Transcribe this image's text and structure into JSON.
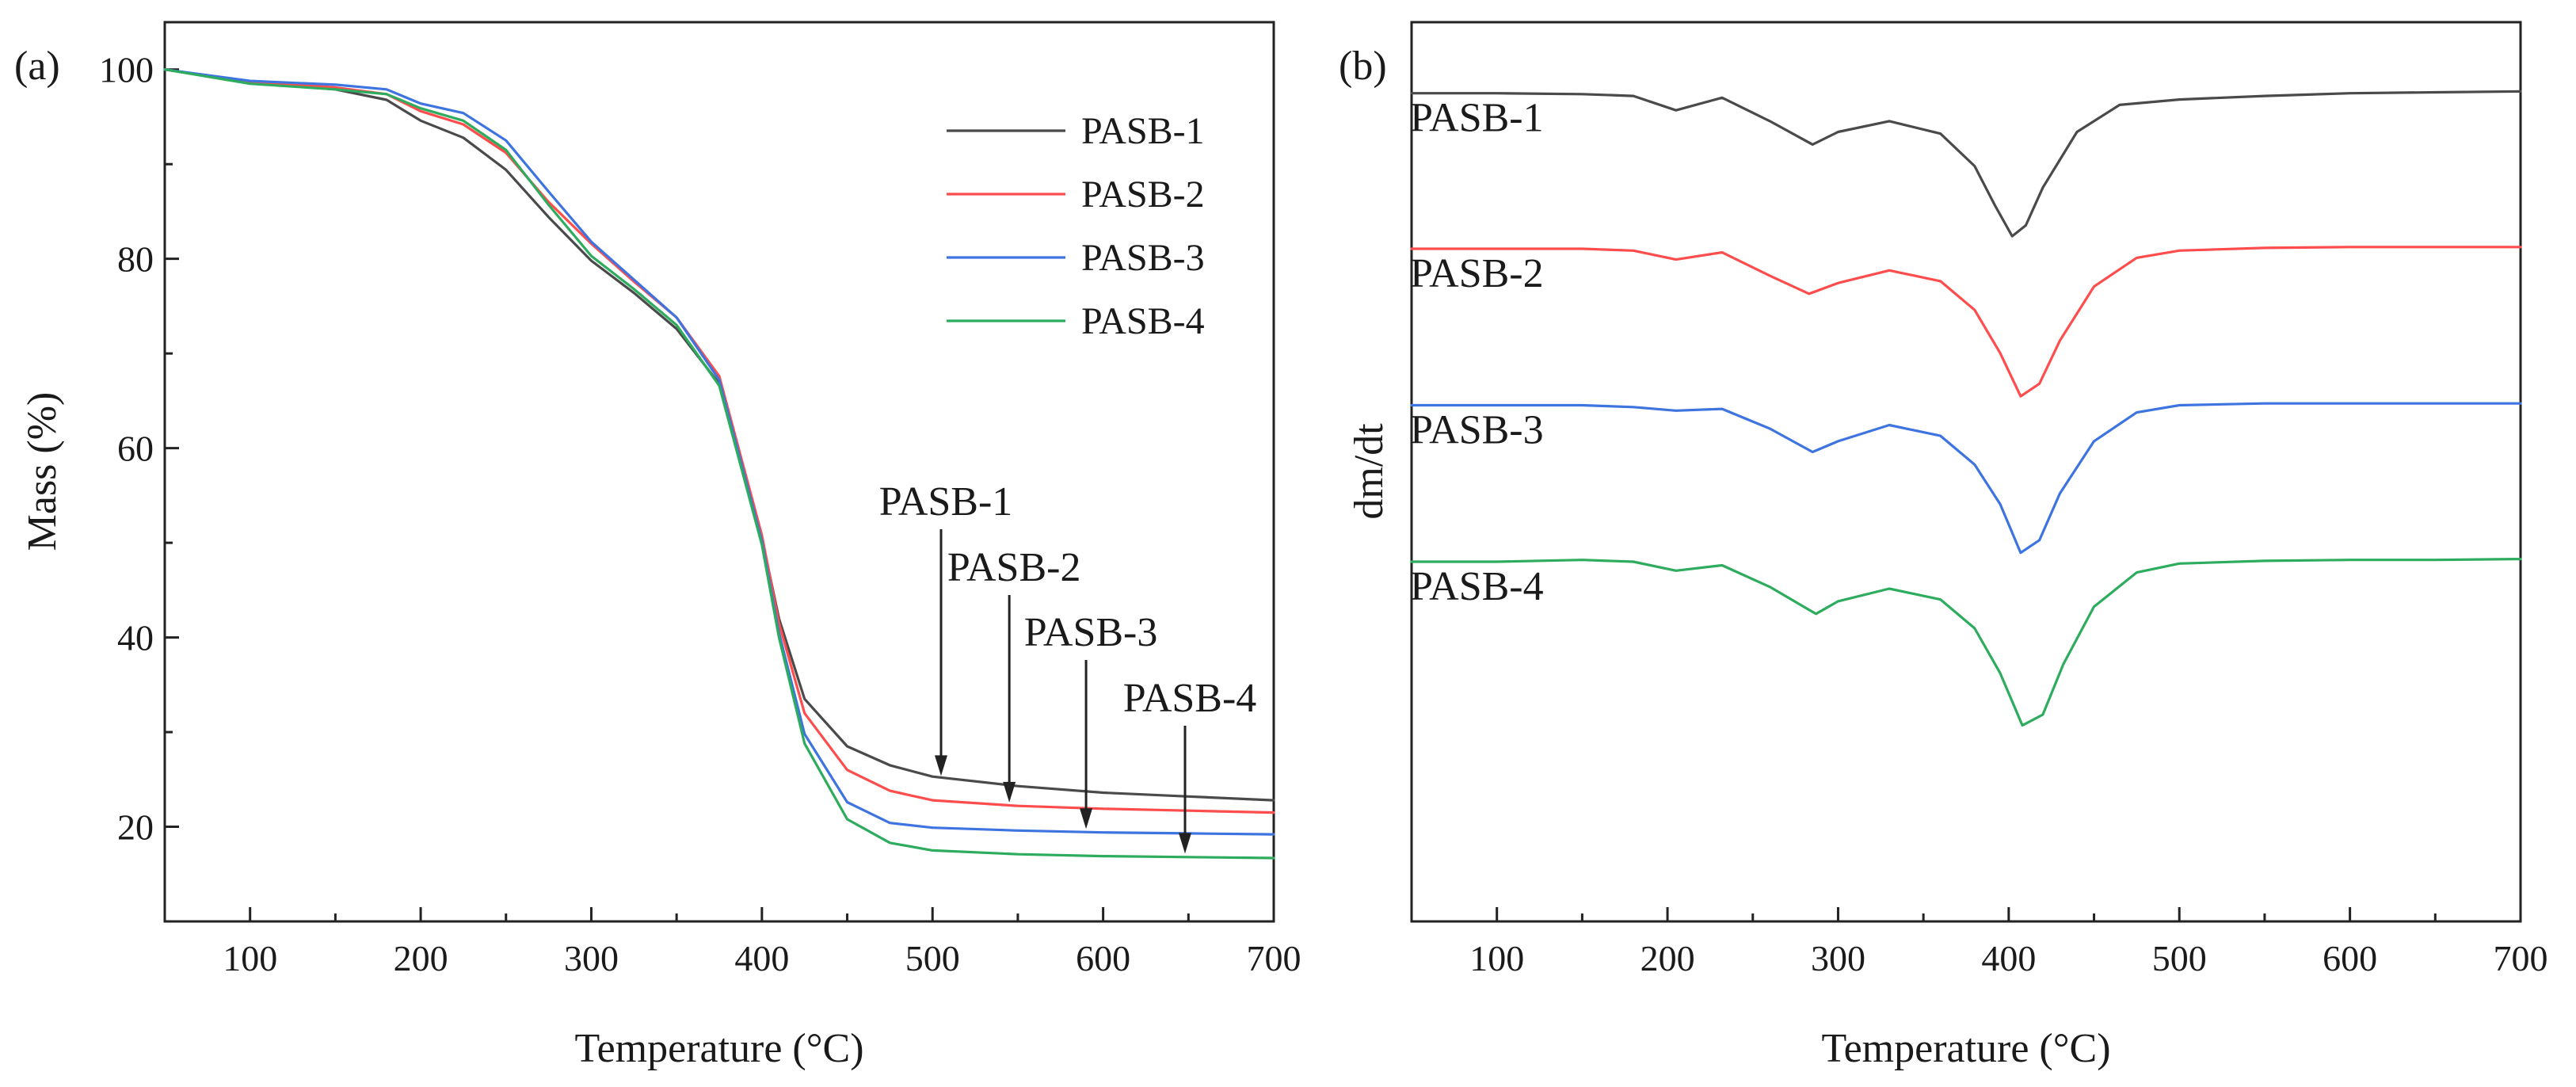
{
  "chart_data": [
    {
      "type": "line",
      "panel_label": "(a)",
      "xlabel": "Temperature (°C)",
      "ylabel": "Mass (%)",
      "xlim": [
        50,
        700
      ],
      "ylim": [
        10,
        105
      ],
      "xticks": [
        100,
        200,
        300,
        400,
        500,
        600,
        700
      ],
      "yticks": [
        20,
        40,
        60,
        80,
        100
      ],
      "legend_position": "top-right",
      "legend": [
        "PASB-1",
        "PASB-2",
        "PASB-3",
        "PASB-4"
      ],
      "series": [
        {
          "name": "PASB-1",
          "color": "#4a4a4a",
          "x": [
            50,
            100,
            150,
            180,
            200,
            225,
            250,
            275,
            300,
            325,
            350,
            375,
            400,
            410,
            425,
            450,
            475,
            500,
            550,
            600,
            650,
            700
          ],
          "y": [
            100,
            98.6,
            97.9,
            96.8,
            94.6,
            92.8,
            89.4,
            84.4,
            79.8,
            76.4,
            72.6,
            66.8,
            50.5,
            42.0,
            33.5,
            28.5,
            26.5,
            25.3,
            24.3,
            23.6,
            23.2,
            22.8
          ]
        },
        {
          "name": "PASB-2",
          "color": "#ff4d4d",
          "x": [
            50,
            100,
            150,
            180,
            200,
            225,
            250,
            275,
            300,
            325,
            350,
            375,
            400,
            410,
            425,
            450,
            475,
            500,
            550,
            600,
            650,
            700
          ],
          "y": [
            100,
            98.7,
            98.1,
            97.4,
            95.6,
            94.2,
            91.2,
            86.0,
            81.6,
            77.6,
            73.8,
            67.6,
            50.8,
            41.5,
            32.0,
            26.0,
            23.8,
            22.8,
            22.2,
            21.9,
            21.7,
            21.5
          ]
        },
        {
          "name": "PASB-3",
          "color": "#3e74e0",
          "x": [
            50,
            100,
            150,
            180,
            200,
            225,
            250,
            275,
            300,
            325,
            350,
            375,
            400,
            410,
            425,
            450,
            475,
            500,
            550,
            600,
            650,
            700
          ],
          "y": [
            100,
            98.8,
            98.4,
            97.9,
            96.4,
            95.4,
            92.5,
            87.1,
            81.8,
            77.8,
            73.8,
            67.2,
            50.2,
            40.5,
            29.8,
            22.6,
            20.4,
            19.9,
            19.6,
            19.4,
            19.3,
            19.2
          ]
        },
        {
          "name": "PASB-4",
          "color": "#2eac5e",
          "x": [
            50,
            100,
            150,
            180,
            200,
            225,
            250,
            275,
            300,
            325,
            350,
            375,
            400,
            410,
            425,
            450,
            475,
            500,
            550,
            600,
            650,
            700
          ],
          "y": [
            100,
            98.5,
            97.9,
            97.4,
            95.9,
            94.6,
            91.5,
            85.7,
            80.3,
            76.8,
            73.0,
            66.6,
            49.8,
            40.0,
            28.8,
            20.8,
            18.3,
            17.5,
            17.1,
            16.9,
            16.8,
            16.7
          ]
        }
      ],
      "annotations": [
        {
          "text": "PASB-1",
          "arrow_x": 505,
          "arrow_tip_y": 25.2
        },
        {
          "text": "PASB-2",
          "arrow_x": 545,
          "arrow_tip_y": 22.4
        },
        {
          "text": "PASB-3",
          "arrow_x": 590,
          "arrow_tip_y": 19.6
        },
        {
          "text": "PASB-4",
          "arrow_x": 648,
          "arrow_tip_y": 17.0
        }
      ]
    },
    {
      "type": "line",
      "panel_label": "(b)",
      "xlabel": "Temperature (°C)",
      "ylabel": "dm/dt",
      "xlim": [
        50,
        700
      ],
      "ylim": [
        0,
        100
      ],
      "xticks": [
        100,
        200,
        300,
        400,
        500,
        600,
        700
      ],
      "yticks": [],
      "legend_position": "none",
      "series": [
        {
          "name": "PASB-1",
          "color": "#4a4a4a",
          "label": "PASB-1",
          "x": [
            50,
            100,
            150,
            180,
            205,
            232,
            260,
            285,
            300,
            330,
            360,
            380,
            392,
            402,
            410,
            420,
            440,
            465,
            500,
            550,
            600,
            650,
            700
          ],
          "y": [
            92.1,
            92.1,
            92.0,
            91.8,
            90.2,
            91.6,
            89.0,
            86.4,
            87.8,
            89.0,
            87.6,
            84.0,
            79.6,
            76.2,
            77.4,
            81.6,
            87.8,
            90.8,
            91.4,
            91.8,
            92.1,
            92.2,
            92.3
          ]
        },
        {
          "name": "PASB-2",
          "color": "#ff4d4d",
          "label": "PASB-2",
          "x": [
            50,
            100,
            150,
            180,
            205,
            232,
            260,
            283,
            300,
            330,
            360,
            380,
            395,
            407,
            418,
            430,
            450,
            475,
            500,
            550,
            600,
            650,
            700
          ],
          "y": [
            74.8,
            74.8,
            74.8,
            74.6,
            73.6,
            74.4,
            71.8,
            69.8,
            71.0,
            72.4,
            71.2,
            68.0,
            63.2,
            58.4,
            59.8,
            64.6,
            70.6,
            73.8,
            74.6,
            74.9,
            75.0,
            75.0,
            75.0
          ]
        },
        {
          "name": "PASB-3",
          "color": "#3e74e0",
          "label": "PASB-3",
          "x": [
            50,
            100,
            150,
            180,
            205,
            232,
            260,
            285,
            300,
            330,
            360,
            380,
            395,
            407,
            418,
            430,
            450,
            475,
            500,
            550,
            600,
            650,
            700
          ],
          "y": [
            57.4,
            57.4,
            57.4,
            57.2,
            56.8,
            57.0,
            54.8,
            52.2,
            53.4,
            55.2,
            54.0,
            50.8,
            46.4,
            41.0,
            42.4,
            47.6,
            53.4,
            56.6,
            57.4,
            57.6,
            57.6,
            57.6,
            57.6
          ]
        },
        {
          "name": "PASB-4",
          "color": "#2eac5e",
          "label": "PASB-4",
          "x": [
            50,
            100,
            150,
            180,
            205,
            232,
            260,
            287,
            300,
            330,
            360,
            380,
            395,
            408,
            420,
            432,
            450,
            475,
            500,
            550,
            600,
            650,
            700
          ],
          "y": [
            40.0,
            40.0,
            40.2,
            40.0,
            39.0,
            39.6,
            37.2,
            34.2,
            35.6,
            37.0,
            35.8,
            32.6,
            27.6,
            21.8,
            23.0,
            28.6,
            35.0,
            38.8,
            39.8,
            40.1,
            40.2,
            40.2,
            40.3
          ]
        }
      ]
    }
  ]
}
